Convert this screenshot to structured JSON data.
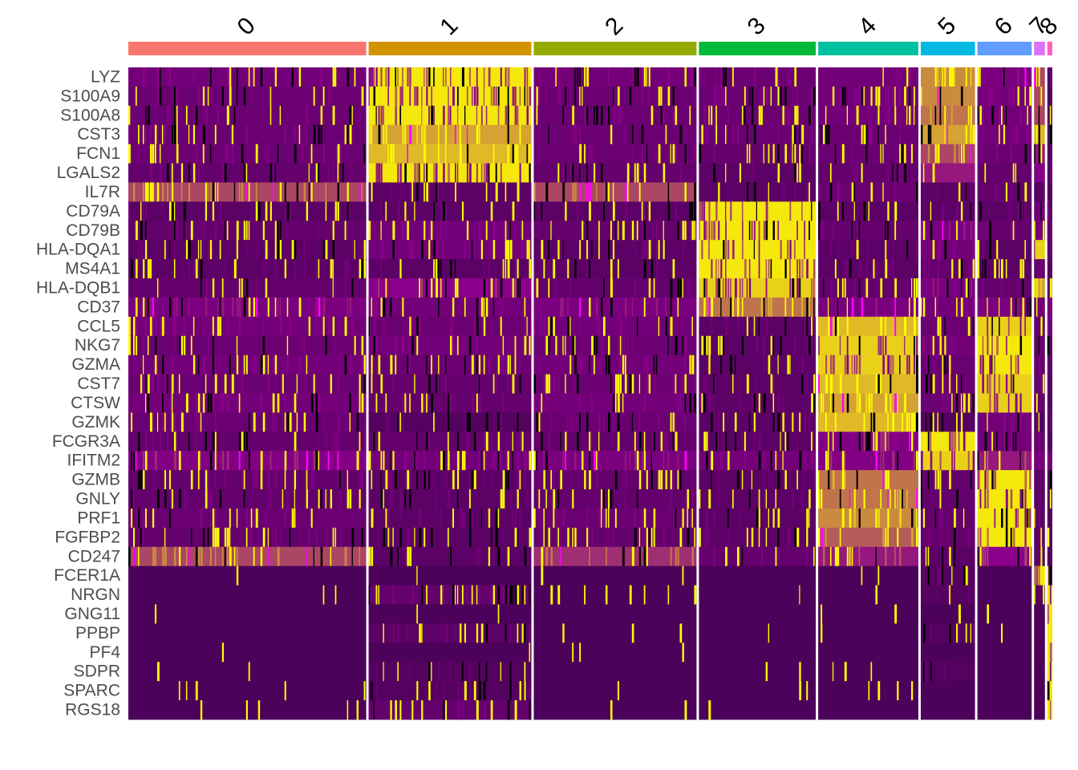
{
  "chart_data": {
    "type": "heatmap",
    "title": "",
    "xlabel": "",
    "ylabel": "",
    "legend": "none",
    "palette": {
      "low": "#440154",
      "mid": "#8B008B",
      "high": "#FFFF00",
      "dark": "#000000",
      "outlier": "#FF00FF"
    },
    "clusters": [
      {
        "id": "0",
        "color": "#F8766D",
        "relative_size": 28.5
      },
      {
        "id": "1",
        "color": "#D39200",
        "relative_size": 19.5
      },
      {
        "id": "2",
        "color": "#93AA00",
        "relative_size": 19.5
      },
      {
        "id": "3",
        "color": "#00BA38",
        "relative_size": 14.0
      },
      {
        "id": "4",
        "color": "#00C19F",
        "relative_size": 12.0
      },
      {
        "id": "5",
        "color": "#00B9E3",
        "relative_size": 6.5
      },
      {
        "id": "6",
        "color": "#619CFF",
        "relative_size": 6.5
      },
      {
        "id": "7",
        "color": "#DB72FB",
        "relative_size": 1.3
      },
      {
        "id": "8",
        "color": "#FF61C3",
        "relative_size": 0.6
      }
    ],
    "genes": [
      "LYZ",
      "S100A9",
      "S100A8",
      "CST3",
      "FCN1",
      "LGALS2",
      "IL7R",
      "CD79A",
      "CD79B",
      "HLA-DQA1",
      "MS4A1",
      "HLA-DQB1",
      "CD37",
      "CCL5",
      "NKG7",
      "GZMA",
      "CST7",
      "CTSW",
      "GZMK",
      "FCGR3A",
      "IFITM2",
      "GZMB",
      "GNLY",
      "PRF1",
      "FGFBP2",
      "CD247",
      "FCER1A",
      "NRGN",
      "GNG11",
      "PPBP",
      "PF4",
      "SDPR",
      "SPARC",
      "RGS18"
    ],
    "expression_level": [
      [
        0.3,
        0.95,
        0.3,
        0.25,
        0.3,
        0.75,
        0.35,
        0.6,
        0.1
      ],
      [
        0.25,
        0.95,
        0.25,
        0.25,
        0.3,
        0.75,
        0.3,
        0.6,
        0.1
      ],
      [
        0.25,
        0.95,
        0.25,
        0.25,
        0.3,
        0.7,
        0.3,
        0.6,
        0.1
      ],
      [
        0.25,
        0.8,
        0.25,
        0.25,
        0.25,
        0.8,
        0.3,
        0.85,
        0.1
      ],
      [
        0.25,
        0.85,
        0.25,
        0.2,
        0.25,
        0.6,
        0.25,
        0.5,
        0.1
      ],
      [
        0.2,
        0.95,
        0.2,
        0.15,
        0.2,
        0.5,
        0.2,
        0.4,
        0.1
      ],
      [
        0.6,
        0.15,
        0.6,
        0.15,
        0.25,
        0.15,
        0.2,
        0.1,
        0.1
      ],
      [
        0.15,
        0.15,
        0.15,
        0.95,
        0.15,
        0.15,
        0.15,
        0.3,
        0.1
      ],
      [
        0.2,
        0.3,
        0.2,
        0.95,
        0.2,
        0.35,
        0.2,
        0.3,
        0.1
      ],
      [
        0.15,
        0.3,
        0.15,
        0.95,
        0.15,
        0.3,
        0.15,
        0.9,
        0.1
      ],
      [
        0.15,
        0.15,
        0.15,
        0.95,
        0.15,
        0.2,
        0.15,
        0.2,
        0.1
      ],
      [
        0.2,
        0.45,
        0.2,
        0.9,
        0.2,
        0.35,
        0.2,
        0.8,
        0.1
      ],
      [
        0.35,
        0.3,
        0.35,
        0.7,
        0.35,
        0.3,
        0.35,
        0.3,
        0.3
      ],
      [
        0.3,
        0.25,
        0.3,
        0.15,
        0.85,
        0.25,
        0.9,
        0.2,
        0.3
      ],
      [
        0.25,
        0.3,
        0.25,
        0.15,
        0.9,
        0.3,
        0.95,
        0.2,
        0.1
      ],
      [
        0.3,
        0.25,
        0.3,
        0.15,
        0.9,
        0.25,
        0.95,
        0.2,
        0.1
      ],
      [
        0.25,
        0.2,
        0.25,
        0.15,
        0.85,
        0.25,
        0.9,
        0.2,
        0.1
      ],
      [
        0.3,
        0.2,
        0.3,
        0.15,
        0.8,
        0.25,
        0.9,
        0.2,
        0.1
      ],
      [
        0.25,
        0.1,
        0.25,
        0.15,
        0.85,
        0.1,
        0.3,
        0.1,
        0.1
      ],
      [
        0.2,
        0.2,
        0.2,
        0.15,
        0.4,
        0.95,
        0.3,
        0.2,
        0.1
      ],
      [
        0.4,
        0.3,
        0.35,
        0.3,
        0.4,
        0.9,
        0.5,
        0.3,
        0.3
      ],
      [
        0.2,
        0.15,
        0.2,
        0.15,
        0.7,
        0.2,
        0.95,
        0.15,
        0.1
      ],
      [
        0.2,
        0.15,
        0.2,
        0.15,
        0.7,
        0.2,
        0.95,
        0.15,
        0.1
      ],
      [
        0.25,
        0.15,
        0.25,
        0.15,
        0.75,
        0.2,
        0.95,
        0.15,
        0.1
      ],
      [
        0.2,
        0.15,
        0.2,
        0.15,
        0.65,
        0.2,
        0.95,
        0.15,
        0.1
      ],
      [
        0.6,
        0.15,
        0.55,
        0.2,
        0.5,
        0.15,
        0.45,
        0.15,
        0.1
      ],
      [
        0.05,
        0.05,
        0.05,
        0.05,
        0.05,
        0.1,
        0.05,
        0.95,
        0.1
      ],
      [
        0.05,
        0.2,
        0.05,
        0.05,
        0.05,
        0.1,
        0.05,
        0.1,
        0.95
      ],
      [
        0.05,
        0.05,
        0.05,
        0.05,
        0.05,
        0.05,
        0.05,
        0.05,
        0.95
      ],
      [
        0.05,
        0.15,
        0.05,
        0.05,
        0.05,
        0.1,
        0.05,
        0.05,
        0.95
      ],
      [
        0.05,
        0.05,
        0.05,
        0.05,
        0.05,
        0.05,
        0.05,
        0.05,
        0.95
      ],
      [
        0.05,
        0.1,
        0.05,
        0.05,
        0.05,
        0.1,
        0.05,
        0.05,
        0.95
      ],
      [
        0.05,
        0.1,
        0.05,
        0.05,
        0.05,
        0.05,
        0.05,
        0.05,
        0.95
      ],
      [
        0.05,
        0.2,
        0.05,
        0.05,
        0.05,
        0.05,
        0.05,
        0.05,
        0.95
      ]
    ]
  }
}
